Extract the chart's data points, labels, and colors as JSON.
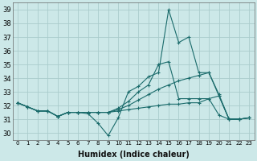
{
  "xlabel": "Humidex (Indice chaleur)",
  "xlim": [
    -0.5,
    23.5
  ],
  "ylim": [
    29.5,
    39.5
  ],
  "xticks": [
    0,
    1,
    2,
    3,
    4,
    5,
    6,
    7,
    8,
    9,
    10,
    11,
    12,
    13,
    14,
    15,
    16,
    17,
    18,
    19,
    20,
    21,
    22,
    23
  ],
  "yticks": [
    30,
    31,
    32,
    33,
    34,
    35,
    36,
    37,
    38,
    39
  ],
  "background_color": "#cce8e8",
  "grid_color": "#aacccc",
  "line_color": "#1a6b6b",
  "lines": [
    {
      "x": [
        0,
        1,
        2,
        3,
        4,
        5,
        6,
        7,
        8,
        9,
        10,
        11,
        12,
        13,
        14,
        15,
        16,
        17,
        18,
        19,
        20,
        21,
        22,
        23
      ],
      "y": [
        32.2,
        31.9,
        31.6,
        31.6,
        31.2,
        31.5,
        31.5,
        31.4,
        30.7,
        29.8,
        31.1,
        33.0,
        33.4,
        34.1,
        34.4,
        39.0,
        36.6,
        37.0,
        34.4,
        34.4,
        32.7,
        31.0,
        31.0,
        31.1
      ],
      "marker": "+"
    },
    {
      "x": [
        0,
        1,
        2,
        3,
        4,
        5,
        6,
        7,
        8,
        9,
        10,
        11,
        12,
        13,
        14,
        15,
        16,
        17,
        18,
        19,
        20,
        21,
        22,
        23
      ],
      "y": [
        32.2,
        31.9,
        31.6,
        31.6,
        31.2,
        31.5,
        31.5,
        31.5,
        31.5,
        31.5,
        31.8,
        32.3,
        33.0,
        33.5,
        35.0,
        35.2,
        32.5,
        32.5,
        32.5,
        32.5,
        32.7,
        31.0,
        31.0,
        31.1
      ],
      "marker": "+"
    },
    {
      "x": [
        0,
        1,
        2,
        3,
        4,
        5,
        6,
        7,
        8,
        9,
        10,
        11,
        12,
        13,
        14,
        15,
        16,
        17,
        18,
        19,
        20,
        21,
        22,
        23
      ],
      "y": [
        32.2,
        31.9,
        31.6,
        31.6,
        31.2,
        31.5,
        31.5,
        31.5,
        31.5,
        31.5,
        31.7,
        32.0,
        32.4,
        32.8,
        33.2,
        33.5,
        33.8,
        34.0,
        34.2,
        34.4,
        32.8,
        31.0,
        31.0,
        31.1
      ],
      "marker": "+"
    },
    {
      "x": [
        0,
        1,
        2,
        3,
        4,
        5,
        6,
        7,
        8,
        9,
        10,
        11,
        12,
        13,
        14,
        15,
        16,
        17,
        18,
        19,
        20,
        21,
        22,
        23
      ],
      "y": [
        32.2,
        31.9,
        31.6,
        31.6,
        31.2,
        31.5,
        31.5,
        31.5,
        31.5,
        31.5,
        31.6,
        31.7,
        31.8,
        31.9,
        32.0,
        32.1,
        32.1,
        32.2,
        32.2,
        32.5,
        31.3,
        31.0,
        31.0,
        31.1
      ],
      "marker": "+"
    }
  ]
}
